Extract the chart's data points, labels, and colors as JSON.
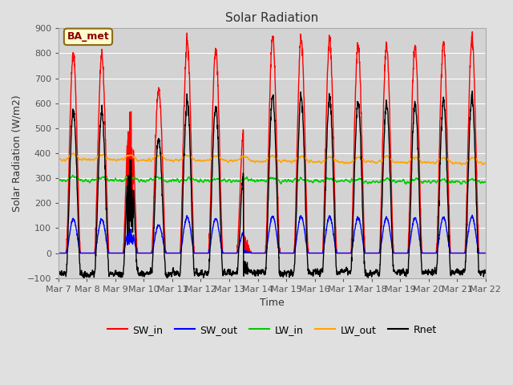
{
  "title": "Solar Radiation",
  "xlabel": "Time",
  "ylabel": "Solar Radiation (W/m2)",
  "ylim": [
    -100,
    900
  ],
  "background_color": "#e0e0e0",
  "plot_bg_color": "#d3d3d3",
  "annotation_text": "BA_met",
  "annotation_bg": "#ffffcc",
  "annotation_border": "#8B6914",
  "xtick_labels": [
    "Mar 7",
    "Mar 8",
    "Mar 9",
    "Mar 10",
    "Mar 11",
    "Mar 12",
    "Mar 13",
    "Mar 14",
    "Mar 15",
    "Mar 16",
    "Mar 17",
    "Mar 18",
    "Mar 19",
    "Mar 20",
    "Mar 21",
    "Mar 22"
  ],
  "series_colors": {
    "SW_in": "#ff0000",
    "SW_out": "#0000ff",
    "LW_in": "#00cc00",
    "LW_out": "#ffa500",
    "Rnet": "#000000"
  },
  "line_width": 1.0
}
